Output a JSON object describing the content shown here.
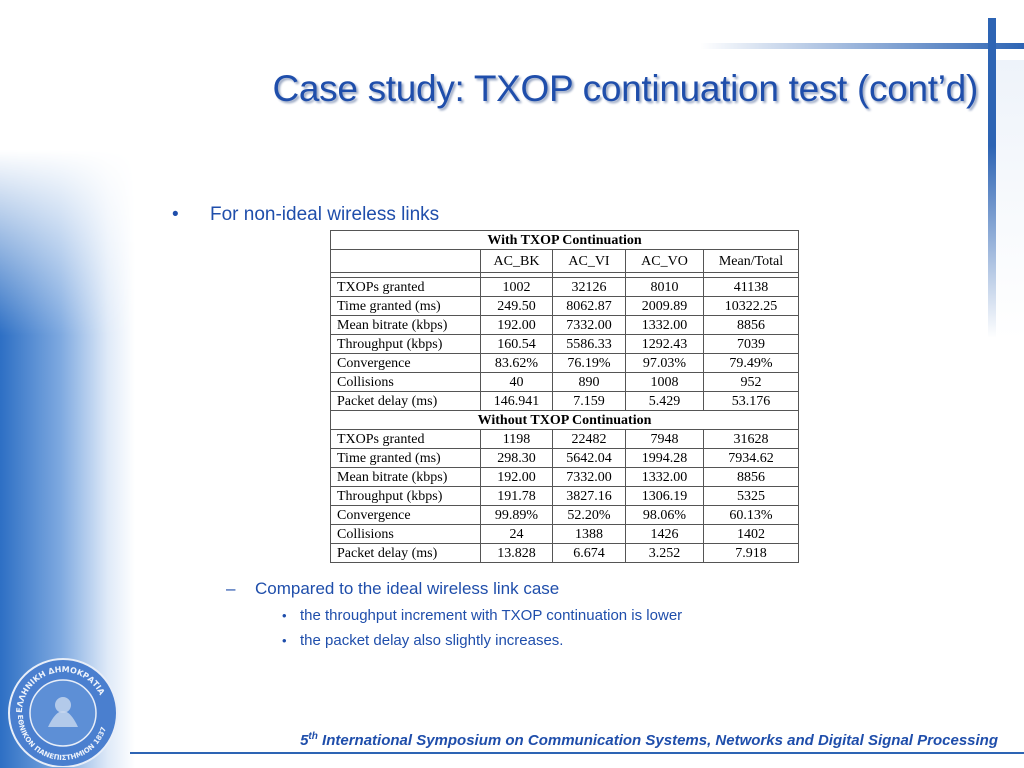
{
  "slide": {
    "title": "Case study: TXOP continuation test (cont’d)",
    "bullet": "For non-ideal wireless links",
    "sub_bullet": "Compared to the ideal wireless link case",
    "sub_points": [
      "the throughput increment with TXOP continuation is lower",
      "the packet delay also slightly increases."
    ],
    "footer_ordinal": "5",
    "footer_sup": "th",
    "footer_rest": " International Symposium on Communication Systems, Networks and Digital Signal Processing"
  },
  "table": {
    "columns": [
      "",
      "AC_BK",
      "AC_VI",
      "AC_VO",
      "Mean/Total"
    ],
    "sections": [
      {
        "title": "With TXOP Continuation",
        "rows": [
          [
            "TXOPs granted",
            "1002",
            "32126",
            "8010",
            "41138"
          ],
          [
            "Time granted (ms)",
            "249.50",
            "8062.87",
            "2009.89",
            "10322.25"
          ],
          [
            "Mean bitrate (kbps)",
            "192.00",
            "7332.00",
            "1332.00",
            "8856"
          ],
          [
            "Throughput (kbps)",
            "160.54",
            "5586.33",
            "1292.43",
            "7039"
          ],
          [
            "Convergence",
            "83.62%",
            "76.19%",
            "97.03%",
            "79.49%"
          ],
          [
            "Collisions",
            "40",
            "890",
            "1008",
            "952"
          ],
          [
            "Packet delay (ms)",
            "146.941",
            "7.159",
            "5.429",
            "53.176"
          ]
        ]
      },
      {
        "title": "Without TXOP Continuation",
        "rows": [
          [
            "TXOPs granted",
            "1198",
            "22482",
            "7948",
            "31628"
          ],
          [
            "Time granted (ms)",
            "298.30",
            "5642.04",
            "1994.28",
            "7934.62"
          ],
          [
            "Mean bitrate (kbps)",
            "192.00",
            "7332.00",
            "1332.00",
            "8856"
          ],
          [
            "Throughput (kbps)",
            "191.78",
            "3827.16",
            "1306.19",
            "5325"
          ],
          [
            "Convergence",
            "99.89%",
            "52.20%",
            "98.06%",
            "60.13%"
          ],
          [
            "Collisions",
            "24",
            "1388",
            "1426",
            "1402"
          ],
          [
            "Packet delay (ms)",
            "13.828",
            "6.674",
            "3.252",
            "7.918"
          ]
        ]
      }
    ]
  },
  "logo": {
    "text_top": "ΕΛΛΗΝΙΚΗ ΔΗΜΟΚΡΑΤΙΑ",
    "text_bottom": "ΕΘΝΙΚΟΝ ΠΑΝΕΠΙΣΤΗΜΙΟΝ 1837"
  },
  "colors": {
    "accent": "#1f4eab",
    "band": "#2d6fc4"
  }
}
